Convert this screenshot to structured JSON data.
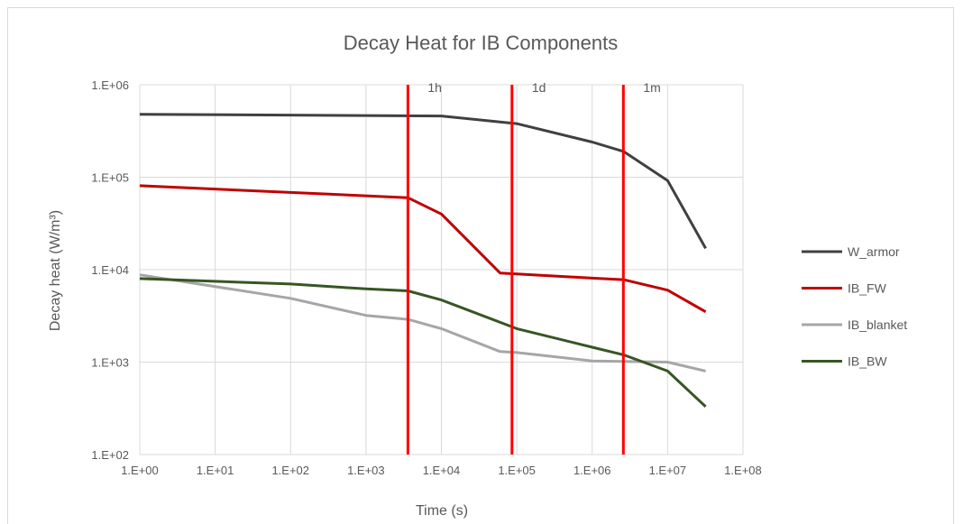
{
  "chart_data": {
    "type": "line",
    "title": "Decay Heat for IB Components",
    "xlabel": "Time (s)",
    "ylabel": "Decay heat (W/m³)",
    "xscale": "log",
    "yscale": "log",
    "xlim": [
      1,
      100000000
    ],
    "ylim": [
      100,
      1000000
    ],
    "x_tick_labels": [
      "1.E+00",
      "1.E+01",
      "1.E+02",
      "1.E+03",
      "1.E+04",
      "1.E+05",
      "1.E+06",
      "1.E+07",
      "1.E+08"
    ],
    "y_tick_labels": [
      "1.E+02",
      "1.E+03",
      "1.E+04",
      "1.E+05",
      "1.E+06"
    ],
    "grid": true,
    "legend_position": "right",
    "markers": [
      {
        "label": "1h",
        "x": 3600,
        "color": "#ff0000"
      },
      {
        "label": "1d",
        "x": 86400,
        "color": "#ff0000"
      },
      {
        "label": "1m",
        "x": 2592000,
        "color": "#ff0000"
      }
    ],
    "series": [
      {
        "name": "W_armor",
        "color": "#404040",
        "x": [
          1,
          10000,
          100000,
          1000000,
          2600000,
          10000000,
          32000000
        ],
        "y": [
          480000,
          460000,
          380000,
          240000,
          190000,
          92000,
          17000
        ]
      },
      {
        "name": "IB_FW",
        "color": "#c00000",
        "x": [
          1,
          3600,
          10000,
          60000,
          100000,
          1000000,
          2600000,
          10000000,
          32000000
        ],
        "y": [
          81000,
          60000,
          40000,
          9200,
          9000,
          8100,
          7800,
          6000,
          3500
        ]
      },
      {
        "name": "IB_blanket",
        "color": "#a6a6a6",
        "x": [
          1,
          100,
          1000,
          3600,
          10000,
          60000,
          100000,
          1000000,
          10000000,
          32000000
        ],
        "y": [
          8800,
          4900,
          3200,
          2900,
          2300,
          1300,
          1270,
          1030,
          1000,
          800
        ]
      },
      {
        "name": "IB_BW",
        "color": "#375623",
        "x": [
          1,
          100,
          1000,
          3600,
          10000,
          100000,
          1000000,
          2600000,
          10000000,
          32000000
        ],
        "y": [
          8000,
          7000,
          6200,
          5900,
          4700,
          2300,
          1450,
          1200,
          800,
          330
        ]
      }
    ]
  }
}
